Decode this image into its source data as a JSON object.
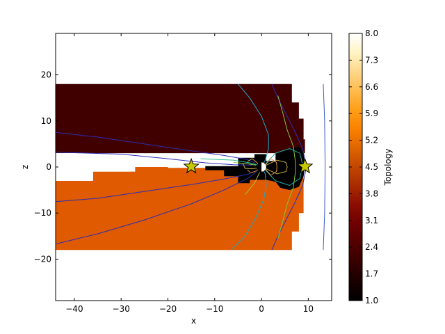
{
  "chart_data": {
    "type": "heatmap",
    "title": "",
    "xlabel": "x",
    "ylabel": "z",
    "colorbar_label": "Topology",
    "xlim": [
      -44,
      15
    ],
    "ylim": [
      -29,
      29
    ],
    "x_ticks": [
      -40,
      -30,
      -20,
      -10,
      0,
      10
    ],
    "x_tick_labels": [
      "−40",
      "−30",
      "−20",
      "−10",
      "0",
      "10"
    ],
    "y_ticks": [
      -20,
      -10,
      0,
      10,
      20
    ],
    "y_tick_labels": [
      "−20",
      "−10",
      "0",
      "10",
      "20"
    ],
    "colorbar": {
      "range": [
        1.0,
        8.0
      ],
      "ticks": [
        "1.0",
        "1.7",
        "2.4",
        "3.1",
        "3.8",
        "4.5",
        "5.2",
        "5.9",
        "6.6",
        "7.3",
        "8.0"
      ],
      "colormap": "afmhot",
      "colors": [
        "#000000",
        "#1a0000",
        "#350000",
        "#520000",
        "#6e0000",
        "#8a0d00",
        "#a62b00",
        "#c24700",
        "#df6500",
        "#fa8200",
        "#ff9f18",
        "#ffbb4f",
        "#ffd88a",
        "#fff4c6",
        "#ffffff"
      ]
    },
    "regions": [
      {
        "topology": 2.2,
        "color": "#410000",
        "points": [
          [
            -44,
            18
          ],
          [
            6.5,
            18
          ],
          [
            6.5,
            14
          ],
          [
            8,
            14
          ],
          [
            8,
            10.5
          ],
          [
            9,
            10.5
          ],
          [
            9,
            6
          ],
          [
            9.3,
            6
          ],
          [
            9.3,
            3
          ],
          [
            -44,
            3
          ]
        ]
      },
      {
        "topology": 3.9,
        "color": "#df5a00",
        "points": [
          [
            -44,
            -3
          ],
          [
            -36,
            -3
          ],
          [
            -36,
            -1
          ],
          [
            -27,
            -1
          ],
          [
            -27,
            0
          ],
          [
            -20,
            0
          ],
          [
            -20,
            -0.2
          ],
          [
            9,
            -0.2
          ],
          [
            9,
            -10
          ],
          [
            8,
            -10
          ],
          [
            8,
            -14
          ],
          [
            6.5,
            -14
          ],
          [
            6.5,
            -18
          ],
          [
            -44,
            -18
          ]
        ]
      },
      {
        "topology": 1.0,
        "color": "#000000",
        "points": [
          [
            -1.5,
            2.8
          ],
          [
            1,
            2.8
          ],
          [
            1,
            1.3
          ],
          [
            3,
            1.3
          ],
          [
            3,
            3
          ],
          [
            6.5,
            4
          ],
          [
            8,
            4.5
          ],
          [
            9,
            3
          ],
          [
            9.3,
            0
          ],
          [
            9,
            -2
          ],
          [
            8,
            -4.3
          ],
          [
            6,
            -5
          ],
          [
            4,
            -4.5
          ],
          [
            3,
            -3.2
          ],
          [
            1,
            -2.8
          ],
          [
            -1.5,
            -2.8
          ],
          [
            -2.5,
            -2.8
          ],
          [
            -2.5,
            -3.5
          ],
          [
            -5,
            -3.5
          ],
          [
            -5,
            -2
          ],
          [
            -8,
            -2
          ],
          [
            -8,
            -0.7
          ],
          [
            -12,
            -0.7
          ],
          [
            -12,
            0.2
          ],
          [
            -5,
            0.2
          ],
          [
            -5,
            2
          ],
          [
            -1.5,
            2
          ]
        ]
      }
    ],
    "white_gaps": [
      {
        "points": [
          [
            -44,
            3
          ],
          [
            -35.5,
            3
          ],
          [
            -35.5,
            2.5
          ],
          [
            -44,
            2.5
          ]
        ]
      },
      {
        "points": [
          [
            -44,
            2.5
          ],
          [
            -36,
            2.5
          ],
          [
            -36,
            -3
          ],
          [
            -44,
            -3
          ]
        ]
      },
      {
        "points": [
          [
            -36,
            0.2
          ],
          [
            -28,
            0.2
          ],
          [
            -28,
            -1
          ],
          [
            -36,
            -1
          ]
        ]
      }
    ],
    "earth": {
      "x": 0,
      "z": 0,
      "radius": 1
    },
    "x_points": [
      {
        "x": -15,
        "z": 0.1,
        "color": "#c8c800"
      },
      {
        "x": 9.3,
        "z": 0.1,
        "color": "#c8c800"
      }
    ],
    "field_lines": [
      {
        "color": "#2c2cb8",
        "points": [
          [
            -44,
            7.5
          ],
          [
            -35,
            6.5
          ],
          [
            -25,
            5
          ],
          [
            -15,
            3.5
          ],
          [
            -8,
            2.5
          ],
          [
            -3,
            1.6
          ],
          [
            -1.2,
            0.8
          ]
        ]
      },
      {
        "color": "#2c2cb8",
        "points": [
          [
            -44,
            3.2
          ],
          [
            -30,
            2.8
          ],
          [
            -20,
            1.8
          ],
          [
            -12,
            0.9
          ],
          [
            -6,
            0.5
          ],
          [
            -2,
            0.4
          ]
        ]
      },
      {
        "color": "#2c2cb8",
        "points": [
          [
            -44,
            -7.5
          ],
          [
            -35,
            -6.8
          ],
          [
            -25,
            -5.3
          ],
          [
            -15,
            -3.8
          ],
          [
            -8,
            -2.6
          ],
          [
            -3,
            -1.6
          ],
          [
            -1.2,
            -0.8
          ]
        ]
      },
      {
        "color": "#2c2cb8",
        "points": [
          [
            -44,
            -16.7
          ],
          [
            -35,
            -14.5
          ],
          [
            -25,
            -11.5
          ],
          [
            -15,
            -8
          ],
          [
            -8,
            -5
          ],
          [
            -3,
            -2.5
          ],
          [
            -1,
            -1
          ]
        ]
      },
      {
        "color": "#2c2cb8",
        "points": [
          [
            2.2,
            18
          ],
          [
            3.5,
            15
          ],
          [
            5,
            12
          ],
          [
            7,
            8
          ],
          [
            8.8,
            4
          ],
          [
            9.4,
            1
          ],
          [
            9.6,
            0
          ],
          [
            9.4,
            -1
          ],
          [
            8.8,
            -4
          ],
          [
            7,
            -8
          ],
          [
            5,
            -12
          ],
          [
            3.5,
            -15
          ],
          [
            2.2,
            -18
          ]
        ]
      },
      {
        "color": "#3a55d0",
        "points": [
          [
            13.2,
            18
          ],
          [
            13.5,
            10
          ],
          [
            13.6,
            0
          ],
          [
            13.5,
            -10
          ],
          [
            13.2,
            -18
          ]
        ]
      },
      {
        "color": "#20a8c8",
        "points": [
          [
            -5,
            18
          ],
          [
            -2.5,
            15
          ],
          [
            0,
            11
          ],
          [
            1.5,
            7
          ],
          [
            1.5,
            4
          ],
          [
            0.8,
            1.5
          ],
          [
            0.3,
            0.6
          ]
        ]
      },
      {
        "color": "#20a8c8",
        "points": [
          [
            -6.5,
            -18
          ],
          [
            -3.5,
            -15
          ],
          [
            -1.2,
            -11
          ],
          [
            0.5,
            -7
          ],
          [
            1,
            -4
          ],
          [
            0.8,
            -1.5
          ],
          [
            0.3,
            -0.6
          ]
        ]
      },
      {
        "color": "#2bc090",
        "points": [
          [
            -13,
            1.8
          ],
          [
            -6,
            1.5
          ],
          [
            -2.5,
            0.9
          ],
          [
            -0.8,
            0.4
          ]
        ]
      },
      {
        "color": "#22b0b0",
        "points": [
          [
            0.8,
            0.6
          ],
          [
            3,
            3
          ],
          [
            6,
            4
          ],
          [
            8.2,
            3
          ],
          [
            8.8,
            0.5
          ],
          [
            8.2,
            -2.5
          ],
          [
            6,
            -4
          ],
          [
            3,
            -3
          ],
          [
            0.8,
            -0.6
          ]
        ]
      },
      {
        "color": "#80c840",
        "points": [
          [
            3.5,
            15.5
          ],
          [
            4.5,
            12
          ],
          [
            5.5,
            8
          ],
          [
            6.8,
            4.5
          ],
          [
            7.2,
            1.5
          ],
          [
            7.3,
            0
          ],
          [
            7.2,
            -1.5
          ],
          [
            6.8,
            -4.5
          ],
          [
            5.5,
            -8
          ],
          [
            4.5,
            -12
          ],
          [
            3.5,
            -15.5
          ]
        ]
      },
      {
        "color": "#9ad040",
        "points": [
          [
            -6,
            1
          ],
          [
            -3,
            0.7
          ],
          [
            -1.2,
            0.4
          ]
        ]
      },
      {
        "color": "#a8c040",
        "points": [
          [
            -3.5,
            -6
          ],
          [
            -1.5,
            -3.5
          ],
          [
            -0.4,
            -1.2
          ]
        ]
      },
      {
        "color": "#c8b040",
        "points": [
          [
            -4,
            0.8
          ],
          [
            -3.5,
            -0.3
          ],
          [
            -2,
            -0.4
          ],
          [
            -0.8,
            -0.2
          ]
        ]
      },
      {
        "color": "#c8b040",
        "points": [
          [
            1,
            0.4
          ],
          [
            3.3,
            1.5
          ],
          [
            5.2,
            1
          ],
          [
            5.5,
            0
          ],
          [
            5.2,
            -1
          ],
          [
            3.3,
            -1.5
          ],
          [
            1,
            -0.4
          ]
        ]
      },
      {
        "color": "#e0a040",
        "points": [
          [
            -3,
            1.2
          ],
          [
            -2,
            1.8
          ],
          [
            -1,
            1
          ],
          [
            -0.6,
            0.4
          ]
        ]
      },
      {
        "color": "#d88a30",
        "points": [
          [
            -3,
            -0.6
          ],
          [
            -2.3,
            -1.3
          ],
          [
            -1,
            -0.8
          ],
          [
            -0.6,
            -0.3
          ]
        ]
      },
      {
        "color": "#e09040",
        "points": [
          [
            0.7,
            0.3
          ],
          [
            2,
            1.8
          ],
          [
            3.2,
            1
          ],
          [
            3.3,
            0
          ],
          [
            3.2,
            -1
          ],
          [
            2,
            -1.8
          ],
          [
            0.7,
            -0.3
          ]
        ]
      }
    ]
  }
}
